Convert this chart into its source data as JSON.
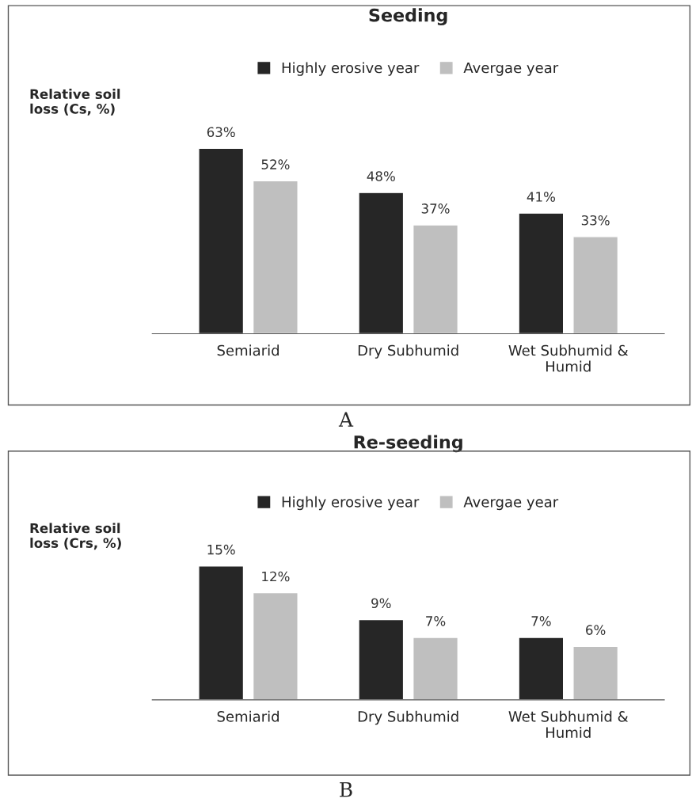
{
  "chart_data": [
    {
      "type": "bar",
      "title": "Seeding",
      "ylabel": "Relative soil\nloss (Cs, %)",
      "categories": [
        "Semiarid",
        "Dry Subhumid",
        "Wet Subhumid &\nHumid"
      ],
      "series": [
        {
          "name": "Highly erosive year",
          "color": "#262626",
          "values": [
            63,
            48,
            41
          ],
          "value_labels": [
            "63%",
            "48%",
            "41%"
          ]
        },
        {
          "name": "Avergae year",
          "color": "#bfbfbf",
          "values": [
            52,
            37,
            33
          ],
          "value_labels": [
            "52%",
            "37%",
            "33%"
          ]
        }
      ],
      "legend": "top",
      "grid": false,
      "annotations": [
        "A"
      ]
    },
    {
      "type": "bar",
      "title": "Re-seeding",
      "ylabel": "Relative soil\nloss (Crs, %)",
      "categories": [
        "Semiarid",
        "Dry Subhumid",
        "Wet Subhumid &\nHumid"
      ],
      "series": [
        {
          "name": "Highly erosive year",
          "color": "#262626",
          "values": [
            15,
            9,
            7
          ],
          "value_labels": [
            "15%",
            "9%",
            "7%"
          ]
        },
        {
          "name": "Avergae year",
          "color": "#bfbfbf",
          "values": [
            12,
            7,
            6
          ],
          "value_labels": [
            "12%",
            "7%",
            "6%"
          ]
        }
      ],
      "legend": "top",
      "grid": false,
      "annotations": [
        "B"
      ]
    }
  ]
}
